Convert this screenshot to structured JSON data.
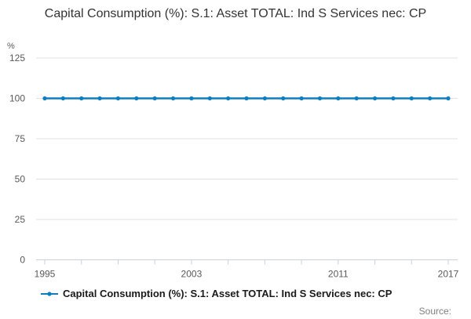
{
  "page": {
    "title": "Capital Consumption (%): S.1: Asset TOTAL: Ind S Services nec: CP",
    "unit_label": "%",
    "source_label": "Source:"
  },
  "legend": {
    "label": "Capital Consumption (%): S.1: Asset TOTAL: Ind S Services nec: CP"
  },
  "chart_data": {
    "type": "line",
    "title": "Capital Consumption (%): S.1: Asset TOTAL: Ind S Services nec: CP",
    "xlabel": "",
    "ylabel": "%",
    "x": [
      1995,
      1996,
      1997,
      1998,
      1999,
      2000,
      2001,
      2002,
      2003,
      2004,
      2005,
      2006,
      2007,
      2008,
      2009,
      2010,
      2011,
      2012,
      2013,
      2014,
      2015,
      2016,
      2017
    ],
    "series": [
      {
        "name": "Capital Consumption (%): S.1: Asset TOTAL: Ind S Services nec: CP",
        "values": [
          100,
          100,
          100,
          100,
          100,
          100,
          100,
          100,
          100,
          100,
          100,
          100,
          100,
          100,
          100,
          100,
          100,
          100,
          100,
          100,
          100,
          100,
          100
        ]
      }
    ],
    "ylim": [
      0,
      125
    ],
    "yticks": [
      0,
      25,
      50,
      75,
      100,
      125
    ],
    "xticks": [
      1995,
      1997,
      1999,
      2001,
      2003,
      2005,
      2007,
      2009,
      2011,
      2013,
      2015,
      2017
    ],
    "xtick_labels": [
      1995,
      2003,
      2011,
      2017
    ],
    "grid": true,
    "legend_position": "bottom-left",
    "marker": "circle",
    "colors": {
      "line": "#0f7dc2",
      "grid": "#e0e0e0",
      "axis": "#c7d3e2",
      "tick_text": "#595959"
    }
  }
}
